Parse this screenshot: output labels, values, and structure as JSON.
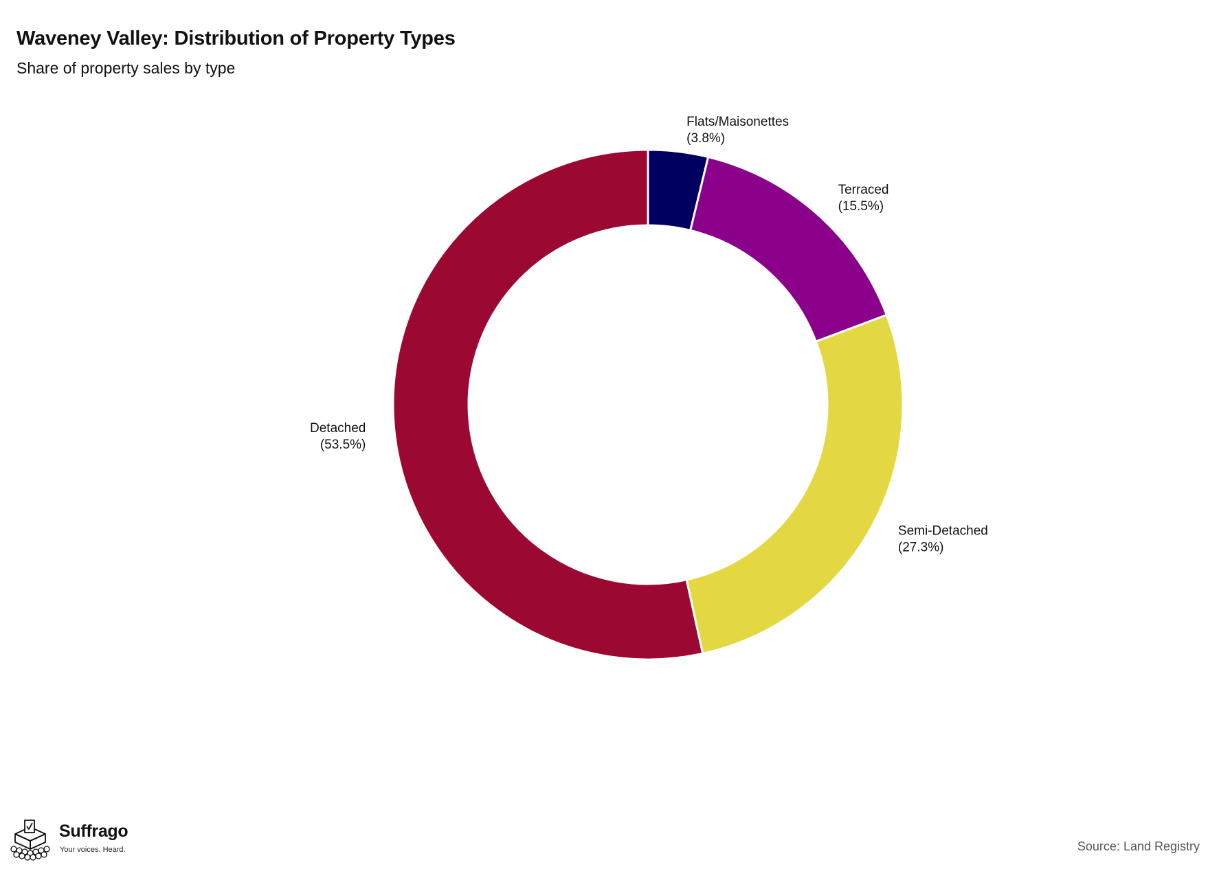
{
  "header": {
    "title": "Waveney Valley: Distribution of Property Types",
    "subtitle": "Share of property sales by type"
  },
  "chart_data": {
    "type": "pie",
    "variant": "donut",
    "title": "Waveney Valley: Distribution of Property Types",
    "subtitle": "Share of property sales by type",
    "start_angle": "12 o'clock",
    "direction": "clockwise",
    "slices": [
      {
        "label": "Flats/Maisonettes",
        "value": 3.8,
        "value_label": "(3.8%)",
        "color": "#000060"
      },
      {
        "label": "Terraced",
        "value": 15.5,
        "value_label": "(15.5%)",
        "color": "#8b008b"
      },
      {
        "label": "Semi-Detached",
        "value": 27.3,
        "value_label": "(27.3%)",
        "color": "#e3d842"
      },
      {
        "label": "Detached",
        "value": 53.5,
        "value_label": "(53.5%)",
        "color": "#9b0832"
      }
    ]
  },
  "footer": {
    "brand_name": "Suffrago",
    "brand_tagline": "Your voices. Heard.",
    "source": "Source: Land Registry"
  }
}
